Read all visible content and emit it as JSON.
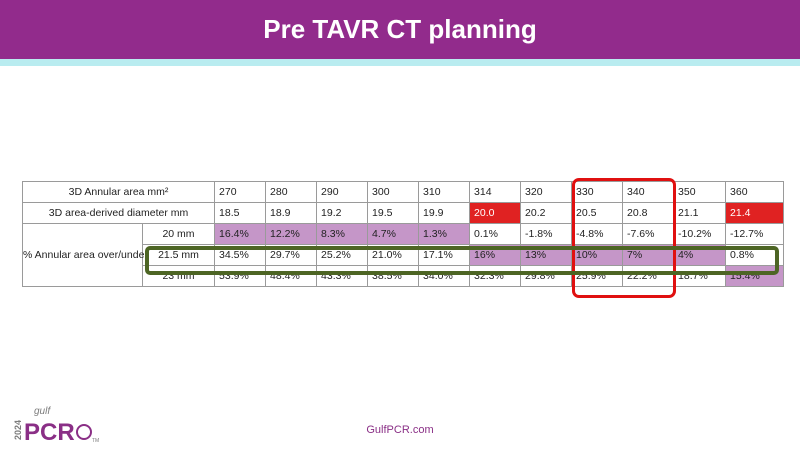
{
  "slide": {
    "title": "Pre TAVR CT planning",
    "footer_url": "GulfPCR.com"
  },
  "logo": {
    "year": "2024",
    "brand_top": "gulf",
    "brand_main": "PCR",
    "mark": "TM"
  },
  "colors": {
    "title_bar": "#922b8c",
    "accent_bar": "#b9ecf0",
    "purple_highlight": "#c596c8",
    "red_highlight": "#e02222",
    "red_outline": "#e01010",
    "green_outline": "#4d6524"
  },
  "table": {
    "rows": [
      {
        "label": "3D Annular area mm²",
        "values": [
          "270",
          "280",
          "290",
          "300",
          "310",
          "314",
          "320",
          "330",
          "340",
          "350",
          "360"
        ],
        "highlights": [
          "",
          "",
          "",
          "",
          "",
          "",
          "",
          "",
          "",
          "",
          ""
        ]
      },
      {
        "label": "3D area-derived diameter mm",
        "values": [
          "18.5",
          "18.9",
          "19.2",
          "19.5",
          "19.9",
          "20.0",
          "20.2",
          "20.5",
          "20.8",
          "21.1",
          "21.4"
        ],
        "highlights": [
          "",
          "",
          "",
          "",
          "",
          "red",
          "",
          "",
          "",
          "",
          "red"
        ]
      }
    ],
    "group_label": "% Annular area over/under",
    "group_rows": [
      {
        "size": "20 mm",
        "values": [
          "16.4%",
          "12.2%",
          "8.3%",
          "4.7%",
          "1.3%",
          "0.1%",
          "-1.8%",
          "-4.8%",
          "-7.6%",
          "-10.2%",
          "-12.7%"
        ],
        "highlights": [
          "purple",
          "purple",
          "purple",
          "purple",
          "purple",
          "",
          "",
          "",
          "",
          "",
          ""
        ]
      },
      {
        "size": "21.5 mm",
        "values": [
          "34.5%",
          "29.7%",
          "25.2%",
          "21.0%",
          "17.1%",
          "16%",
          "13%",
          "10%",
          "7%",
          "4%",
          "0.8%"
        ],
        "highlights": [
          "",
          "",
          "",
          "",
          "",
          "purple",
          "purple",
          "purple",
          "purple",
          "purple",
          ""
        ]
      },
      {
        "size": "23 mm",
        "values": [
          "53.9%",
          "48.4%",
          "43.3%",
          "38.5%",
          "34.0%",
          "32.3%",
          "29.8%",
          "25.9%",
          "22.2%",
          "18.7%",
          "15.4%"
        ],
        "highlights": [
          "",
          "",
          "",
          "",
          "",
          "",
          "",
          "",
          "",
          "",
          "purple"
        ]
      }
    ]
  }
}
